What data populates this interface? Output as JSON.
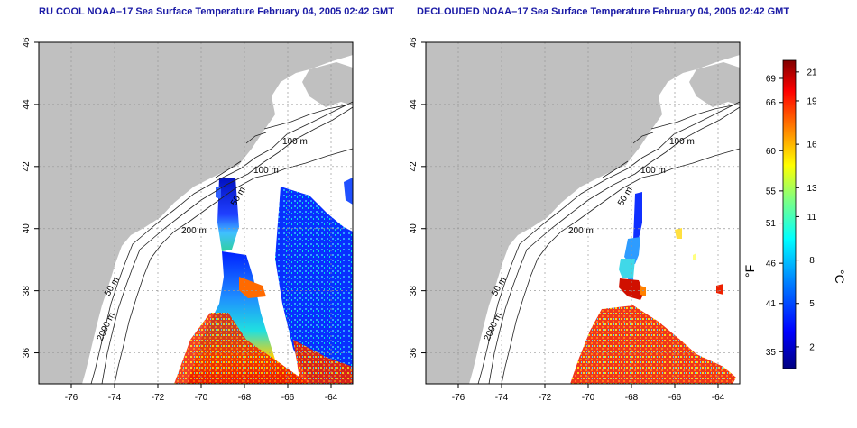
{
  "chart_data": [
    {
      "type": "heatmap",
      "title": "RU COOL NOAA–17 Sea Surface Temperature February 04, 2005 02:42 GMT",
      "xlabel": "",
      "ylabel": "",
      "xlim": [
        -77.5,
        -63.0
      ],
      "ylim": [
        35.0,
        46.0
      ],
      "x_ticks": [
        "-76",
        "-74",
        "-72",
        "-70",
        "-68",
        "-66",
        "-64"
      ],
      "y_ticks": [
        "36",
        "38",
        "40",
        "42",
        "44",
        "46"
      ],
      "grid": true,
      "contour_labels": [
        "100 m",
        "100 m",
        "50 m",
        "200 m",
        "50 m",
        "2000 m"
      ],
      "data": "sst_field_full_swath"
    },
    {
      "type": "heatmap",
      "title": "DECLOUDED NOAA–17 Sea Surface Temperature February 04, 2005 02:42 GMT",
      "xlabel": "",
      "ylabel": "",
      "xlim": [
        -77.5,
        -63.0
      ],
      "ylim": [
        35.0,
        46.0
      ],
      "x_ticks": [
        "-76",
        "-74",
        "-72",
        "-70",
        "-68",
        "-66",
        "-64"
      ],
      "y_ticks": [
        "36",
        "38",
        "40",
        "42",
        "44",
        "46"
      ],
      "grid": true,
      "contour_labels": [
        "100 m",
        "100 m",
        "50 m",
        "200 m",
        "50 m",
        "2000 m"
      ],
      "data": "sst_field_declouded"
    }
  ],
  "colorbar": {
    "fahrenheit_label": "°F",
    "celsius_label": "°C",
    "fahrenheit_ticks": [
      "69",
      "66",
      "60",
      "55",
      "51",
      "46",
      "41",
      "35"
    ],
    "fahrenheit_values": [
      69,
      66,
      60,
      55,
      51,
      46,
      41,
      35
    ],
    "celsius_ticks": [
      "21",
      "19",
      "16",
      "13",
      "11",
      "8",
      "5",
      "2"
    ],
    "celsius_values": [
      21,
      19,
      16,
      13,
      11,
      8,
      5,
      2
    ],
    "range_c": [
      0.5,
      21.8
    ],
    "colors": [
      "#000080",
      "#0000ff",
      "#0080ff",
      "#00ffff",
      "#80ff80",
      "#ffff00",
      "#ff8000",
      "#ff0000",
      "#800000"
    ]
  },
  "colors": {
    "land": "#c0c0c0",
    "title": "#1a1aa6",
    "grid": "#999999"
  }
}
